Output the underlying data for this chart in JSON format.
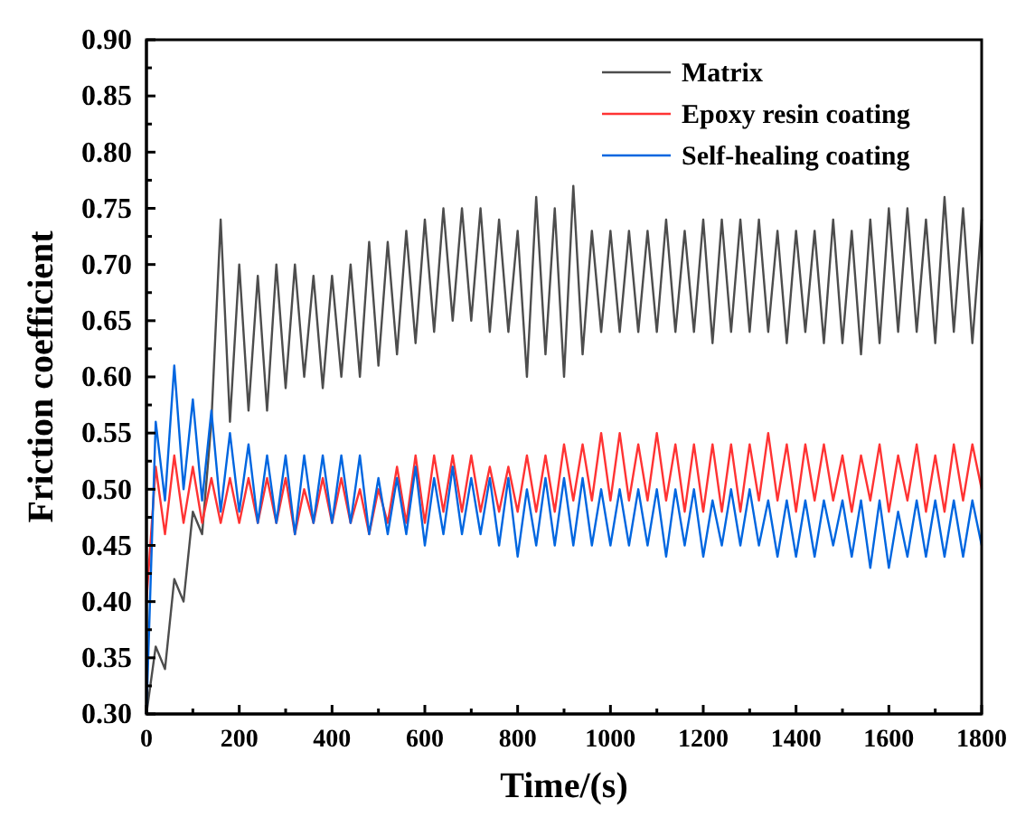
{
  "chart_data": {
    "type": "line",
    "xlabel": "Time/(s)",
    "ylabel": "Friction coefficient",
    "x": [
      0,
      20,
      40,
      60,
      80,
      100,
      120,
      140,
      160,
      180,
      200,
      220,
      240,
      260,
      280,
      300,
      320,
      340,
      360,
      380,
      400,
      420,
      440,
      460,
      480,
      500,
      520,
      540,
      560,
      580,
      600,
      620,
      640,
      660,
      680,
      700,
      720,
      740,
      760,
      780,
      800,
      820,
      840,
      860,
      880,
      900,
      920,
      940,
      960,
      980,
      1000,
      1020,
      1040,
      1060,
      1080,
      1100,
      1120,
      1140,
      1160,
      1180,
      1200,
      1220,
      1240,
      1260,
      1280,
      1300,
      1320,
      1340,
      1360,
      1380,
      1400,
      1420,
      1440,
      1460,
      1480,
      1500,
      1520,
      1540,
      1560,
      1580,
      1600,
      1620,
      1640,
      1660,
      1680,
      1700,
      1720,
      1740,
      1760,
      1780,
      1800
    ],
    "series": [
      {
        "name": "Matrix",
        "color": "#4d4d4d",
        "values": [
          0.3,
          0.36,
          0.34,
          0.42,
          0.4,
          0.48,
          0.46,
          0.56,
          0.74,
          0.56,
          0.7,
          0.57,
          0.69,
          0.57,
          0.7,
          0.59,
          0.7,
          0.6,
          0.69,
          0.59,
          0.69,
          0.6,
          0.7,
          0.6,
          0.72,
          0.61,
          0.72,
          0.62,
          0.73,
          0.63,
          0.74,
          0.64,
          0.75,
          0.65,
          0.75,
          0.65,
          0.75,
          0.64,
          0.74,
          0.64,
          0.73,
          0.6,
          0.76,
          0.62,
          0.75,
          0.6,
          0.77,
          0.62,
          0.73,
          0.64,
          0.73,
          0.64,
          0.73,
          0.64,
          0.73,
          0.64,
          0.74,
          0.64,
          0.73,
          0.64,
          0.74,
          0.63,
          0.74,
          0.64,
          0.74,
          0.64,
          0.74,
          0.64,
          0.73,
          0.63,
          0.73,
          0.64,
          0.73,
          0.63,
          0.74,
          0.63,
          0.73,
          0.62,
          0.74,
          0.63,
          0.75,
          0.64,
          0.75,
          0.64,
          0.74,
          0.63,
          0.76,
          0.64,
          0.75,
          0.63,
          0.74
        ]
      },
      {
        "name": "Epoxy resin coating",
        "color": "#ff3333",
        "values": [
          0.4,
          0.52,
          0.46,
          0.53,
          0.47,
          0.52,
          0.47,
          0.51,
          0.47,
          0.51,
          0.47,
          0.51,
          0.47,
          0.51,
          0.47,
          0.51,
          0.46,
          0.5,
          0.47,
          0.51,
          0.47,
          0.51,
          0.47,
          0.5,
          0.46,
          0.5,
          0.47,
          0.52,
          0.47,
          0.53,
          0.47,
          0.53,
          0.48,
          0.53,
          0.48,
          0.53,
          0.48,
          0.52,
          0.48,
          0.52,
          0.48,
          0.53,
          0.48,
          0.53,
          0.48,
          0.54,
          0.49,
          0.54,
          0.49,
          0.55,
          0.49,
          0.55,
          0.49,
          0.54,
          0.49,
          0.55,
          0.49,
          0.54,
          0.48,
          0.54,
          0.48,
          0.54,
          0.48,
          0.54,
          0.48,
          0.54,
          0.49,
          0.55,
          0.49,
          0.54,
          0.48,
          0.54,
          0.49,
          0.54,
          0.49,
          0.53,
          0.48,
          0.53,
          0.49,
          0.54,
          0.48,
          0.53,
          0.49,
          0.54,
          0.48,
          0.53,
          0.48,
          0.54,
          0.49,
          0.54,
          0.5
        ]
      },
      {
        "name": "Self-healing coating",
        "color": "#0066e0",
        "values": [
          0.3,
          0.56,
          0.49,
          0.61,
          0.5,
          0.58,
          0.49,
          0.57,
          0.48,
          0.55,
          0.48,
          0.54,
          0.47,
          0.53,
          0.47,
          0.53,
          0.46,
          0.53,
          0.47,
          0.53,
          0.47,
          0.53,
          0.47,
          0.53,
          0.46,
          0.51,
          0.46,
          0.51,
          0.46,
          0.52,
          0.45,
          0.51,
          0.46,
          0.52,
          0.46,
          0.51,
          0.46,
          0.51,
          0.45,
          0.51,
          0.44,
          0.5,
          0.45,
          0.51,
          0.45,
          0.51,
          0.45,
          0.51,
          0.45,
          0.5,
          0.45,
          0.5,
          0.45,
          0.5,
          0.45,
          0.5,
          0.44,
          0.5,
          0.45,
          0.5,
          0.44,
          0.49,
          0.45,
          0.5,
          0.45,
          0.5,
          0.45,
          0.49,
          0.44,
          0.49,
          0.44,
          0.49,
          0.44,
          0.49,
          0.45,
          0.49,
          0.44,
          0.49,
          0.43,
          0.49,
          0.43,
          0.48,
          0.44,
          0.49,
          0.44,
          0.49,
          0.44,
          0.49,
          0.44,
          0.49,
          0.45
        ]
      }
    ],
    "xlim": [
      0,
      1800
    ],
    "xticks": [
      0,
      {
        "value": 100,
        "label": null
      },
      200,
      {
        "value": 300,
        "label": null
      },
      400,
      {
        "value": 500,
        "label": null
      },
      600,
      {
        "value": 700,
        "label": null
      },
      800,
      {
        "value": 900,
        "label": null
      },
      1000,
      {
        "value": 1100,
        "label": null
      },
      1200,
      {
        "value": 1300,
        "label": null
      },
      1400,
      {
        "value": 1500,
        "label": null
      },
      1600,
      {
        "value": 1700,
        "label": null
      },
      1800
    ],
    "ylim": [
      0.3,
      0.9
    ],
    "yticks": [
      {
        "value": 0.3,
        "label": "0.30"
      },
      {
        "value": 0.325,
        "label": null
      },
      {
        "value": 0.35,
        "label": "0.35"
      },
      {
        "value": 0.375,
        "label": null
      },
      {
        "value": 0.4,
        "label": "0.40"
      },
      {
        "value": 0.425,
        "label": null
      },
      {
        "value": 0.45,
        "label": "0.45"
      },
      {
        "value": 0.475,
        "label": null
      },
      {
        "value": 0.5,
        "label": "0.50"
      },
      {
        "value": 0.525,
        "label": null
      },
      {
        "value": 0.55,
        "label": "0.55"
      },
      {
        "value": 0.575,
        "label": null
      },
      {
        "value": 0.6,
        "label": "0.60"
      },
      {
        "value": 0.625,
        "label": null
      },
      {
        "value": 0.65,
        "label": "0.65"
      },
      {
        "value": 0.675,
        "label": null
      },
      {
        "value": 0.7,
        "label": "0.70"
      },
      {
        "value": 0.725,
        "label": null
      },
      {
        "value": 0.75,
        "label": "0.75"
      },
      {
        "value": 0.775,
        "label": null
      },
      {
        "value": 0.8,
        "label": "0.80"
      },
      {
        "value": 0.825,
        "label": null
      },
      {
        "value": 0.85,
        "label": "0.85"
      },
      {
        "value": 0.875,
        "label": null
      },
      {
        "value": 0.9,
        "label": "0.90"
      }
    ],
    "legend": "top right",
    "line_style": "solid"
  }
}
